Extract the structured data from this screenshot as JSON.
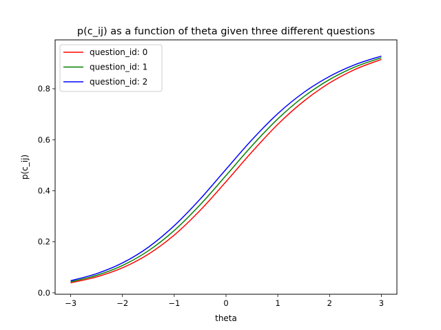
{
  "chart_data": {
    "type": "line",
    "title": "p(c_ij) as a function of theta given three different questions",
    "xlabel": "theta",
    "ylabel": "p(c_ij)",
    "xlim": [
      -3.3,
      3.3
    ],
    "ylim": [
      -0.0056,
      0.9916
    ],
    "x_ticks": [
      -3,
      -2,
      -1,
      0,
      1,
      2,
      3
    ],
    "x_tick_labels": [
      "−3",
      "−2",
      "−1",
      "0",
      "1",
      "2",
      "3"
    ],
    "y_ticks": [
      0.0,
      0.2,
      0.4,
      0.6,
      0.8
    ],
    "y_tick_labels": [
      "0.0",
      "0.2",
      "0.4",
      "0.6",
      "0.8"
    ],
    "grid": false,
    "legend_position": "upper-left",
    "x": [
      -3.0,
      -2.5,
      -2.0,
      -1.5,
      -1.0,
      -0.5,
      0.0,
      0.5,
      1.0,
      1.5,
      2.0,
      2.5,
      3.0
    ],
    "series": [
      {
        "name": "question_id: 0",
        "color": "#ff0000",
        "values": [
          0.0392,
          0.0624,
          0.0979,
          0.1513,
          0.2263,
          0.3232,
          0.4357,
          0.5523,
          0.6604,
          0.751,
          0.8227,
          0.8765,
          0.915
        ]
      },
      {
        "name": "question_id: 1",
        "color": "#008000",
        "values": [
          0.0431,
          0.0685,
          0.1072,
          0.1647,
          0.2442,
          0.345,
          0.4599,
          0.5762,
          0.6819,
          0.7687,
          0.8361,
          0.8862,
          0.9218
        ]
      },
      {
        "name": "question_id: 2",
        "color": "#0000ff",
        "values": [
          0.0474,
          0.0751,
          0.1171,
          0.1788,
          0.263,
          0.3673,
          0.4843,
          0.5998,
          0.7025,
          0.7853,
          0.8484,
          0.8951,
          0.9281
        ]
      }
    ]
  }
}
